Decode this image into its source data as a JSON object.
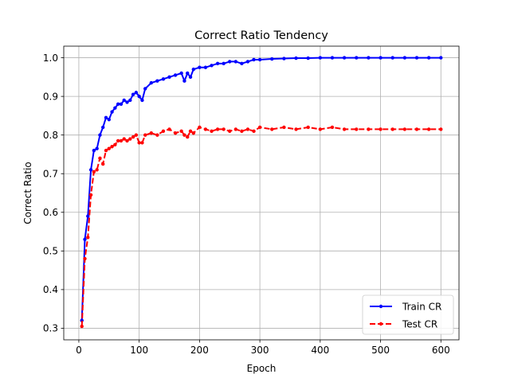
{
  "chart_data": {
    "type": "line",
    "title": "Correct Ratio Tendency",
    "xlabel": "Epoch",
    "ylabel": "Correct Ratio",
    "xlim": [
      -25,
      630
    ],
    "ylim": [
      0.27,
      1.03
    ],
    "xticks": [
      0,
      100,
      200,
      300,
      400,
      500,
      600
    ],
    "yticks": [
      0.3,
      0.4,
      0.5,
      0.6,
      0.7,
      0.8,
      0.9,
      1.0
    ],
    "xtick_labels": [
      "0",
      "100",
      "200",
      "300",
      "400",
      "500",
      "600"
    ],
    "ytick_labels": [
      "0.3",
      "0.4",
      "0.5",
      "0.6",
      "0.7",
      "0.8",
      "0.9",
      "1.0"
    ],
    "grid": true,
    "legend_position": "lower-right",
    "series": [
      {
        "name": "Train CR",
        "color": "#0000ff",
        "linestyle": "solid",
        "x": [
          5,
          10,
          15,
          20,
          25,
          30,
          35,
          40,
          45,
          50,
          55,
          60,
          65,
          70,
          75,
          80,
          85,
          90,
          95,
          100,
          105,
          110,
          120,
          130,
          140,
          150,
          160,
          170,
          175,
          180,
          185,
          190,
          200,
          210,
          220,
          230,
          240,
          250,
          260,
          270,
          280,
          290,
          300,
          320,
          340,
          360,
          380,
          400,
          420,
          440,
          460,
          480,
          500,
          520,
          540,
          560,
          580,
          600
        ],
        "values": [
          0.32,
          0.53,
          0.59,
          0.71,
          0.76,
          0.765,
          0.8,
          0.82,
          0.845,
          0.84,
          0.86,
          0.87,
          0.88,
          0.88,
          0.89,
          0.885,
          0.89,
          0.905,
          0.91,
          0.9,
          0.89,
          0.92,
          0.935,
          0.94,
          0.945,
          0.95,
          0.955,
          0.96,
          0.94,
          0.96,
          0.95,
          0.97,
          0.975,
          0.975,
          0.98,
          0.985,
          0.985,
          0.99,
          0.99,
          0.985,
          0.99,
          0.995,
          0.995,
          0.997,
          0.998,
          0.999,
          0.999,
          1.0,
          1.0,
          1.0,
          1.0,
          1.0,
          1.0,
          1.0,
          1.0,
          1.0,
          1.0,
          1.0
        ]
      },
      {
        "name": "Test CR",
        "color": "#ff0000",
        "linestyle": "dashed",
        "x": [
          5,
          10,
          15,
          20,
          25,
          30,
          35,
          40,
          45,
          50,
          55,
          60,
          65,
          70,
          75,
          80,
          85,
          90,
          95,
          100,
          105,
          110,
          120,
          130,
          140,
          150,
          160,
          170,
          175,
          180,
          185,
          190,
          200,
          210,
          220,
          230,
          240,
          250,
          260,
          270,
          280,
          290,
          300,
          320,
          340,
          360,
          380,
          400,
          420,
          440,
          460,
          480,
          500,
          520,
          540,
          560,
          580,
          600
        ],
        "values": [
          0.305,
          0.48,
          0.535,
          0.645,
          0.705,
          0.71,
          0.74,
          0.725,
          0.76,
          0.765,
          0.77,
          0.775,
          0.785,
          0.785,
          0.79,
          0.785,
          0.79,
          0.795,
          0.8,
          0.78,
          0.78,
          0.8,
          0.805,
          0.8,
          0.81,
          0.815,
          0.805,
          0.81,
          0.8,
          0.795,
          0.81,
          0.805,
          0.82,
          0.815,
          0.81,
          0.815,
          0.815,
          0.81,
          0.815,
          0.81,
          0.815,
          0.81,
          0.82,
          0.815,
          0.82,
          0.815,
          0.82,
          0.815,
          0.82,
          0.815,
          0.815,
          0.815,
          0.815,
          0.815,
          0.815,
          0.815,
          0.815,
          0.815
        ]
      }
    ]
  }
}
